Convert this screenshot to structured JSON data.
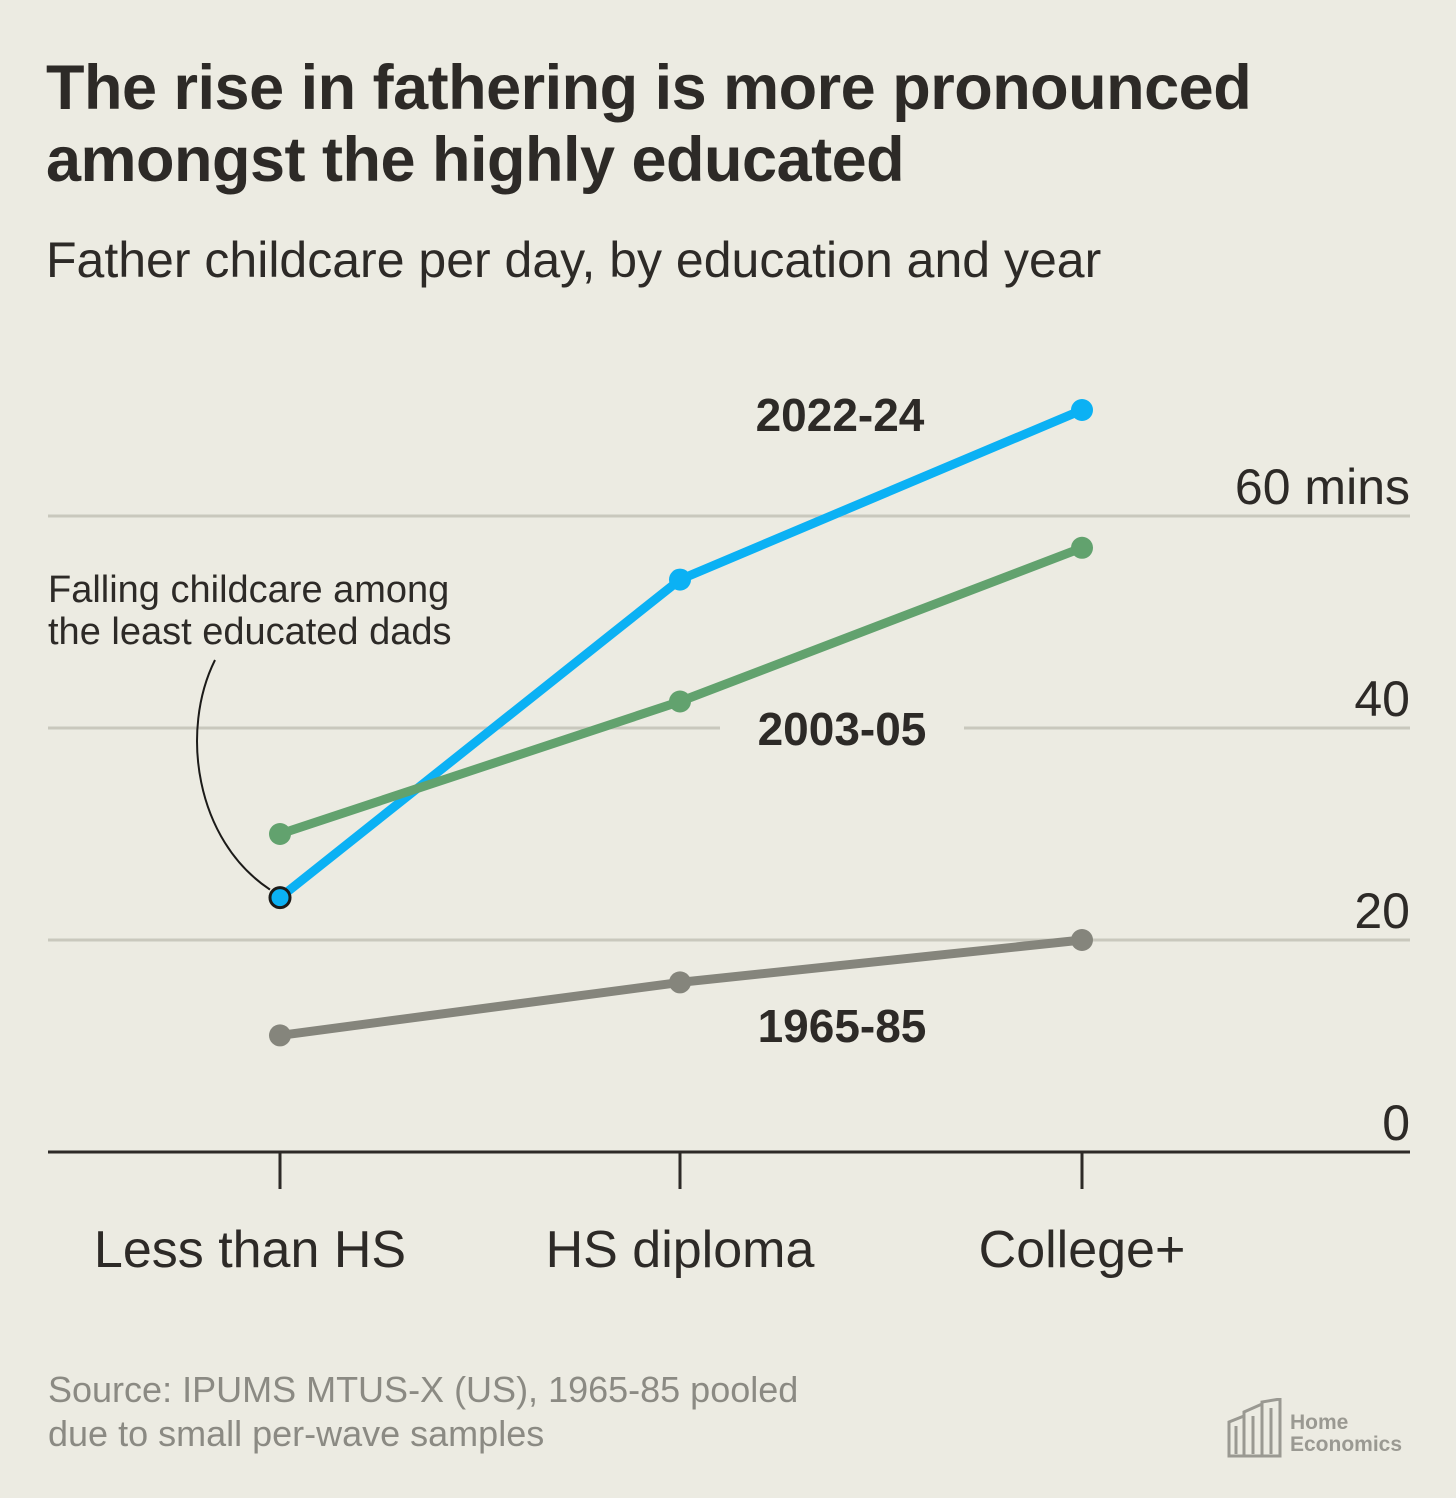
{
  "title": "The rise in fathering is more pronounced amongst the highly educated",
  "subtitle": "Father childcare per day, by education and year",
  "source": {
    "line1": "Source: IPUMS MTUS-X (US), 1965-85 pooled",
    "line2": "due to small per-wave samples"
  },
  "logo": {
    "line1": "Home",
    "line2": "Economics"
  },
  "chart_data": {
    "type": "line",
    "categories": [
      "Less than HS",
      "HS diploma",
      "College+"
    ],
    "series": [
      {
        "name": "2022-24",
        "values": [
          24,
          54,
          70
        ],
        "color": "#0bb1f4"
      },
      {
        "name": "2003-05",
        "values": [
          30,
          42.5,
          57
        ],
        "color": "#62a26e"
      },
      {
        "name": "1965-85",
        "values": [
          11,
          16,
          20
        ],
        "color": "#85857c"
      }
    ],
    "ylim": [
      0,
      72
    ],
    "yticks": [
      0,
      20,
      40,
      60
    ],
    "ytick_labels": [
      "0",
      "20",
      "40",
      "60 mins"
    ],
    "grid": true,
    "annotation": {
      "text_line1": "Falling childcare among",
      "text_line2": "the least educated dads",
      "target_series": "2022-24",
      "target_category": "Less than HS"
    },
    "colors": {
      "background": "#ecebe2",
      "grid": "#c9c8bd",
      "axis": "#2d2a27",
      "text": "#2d2a27"
    }
  }
}
